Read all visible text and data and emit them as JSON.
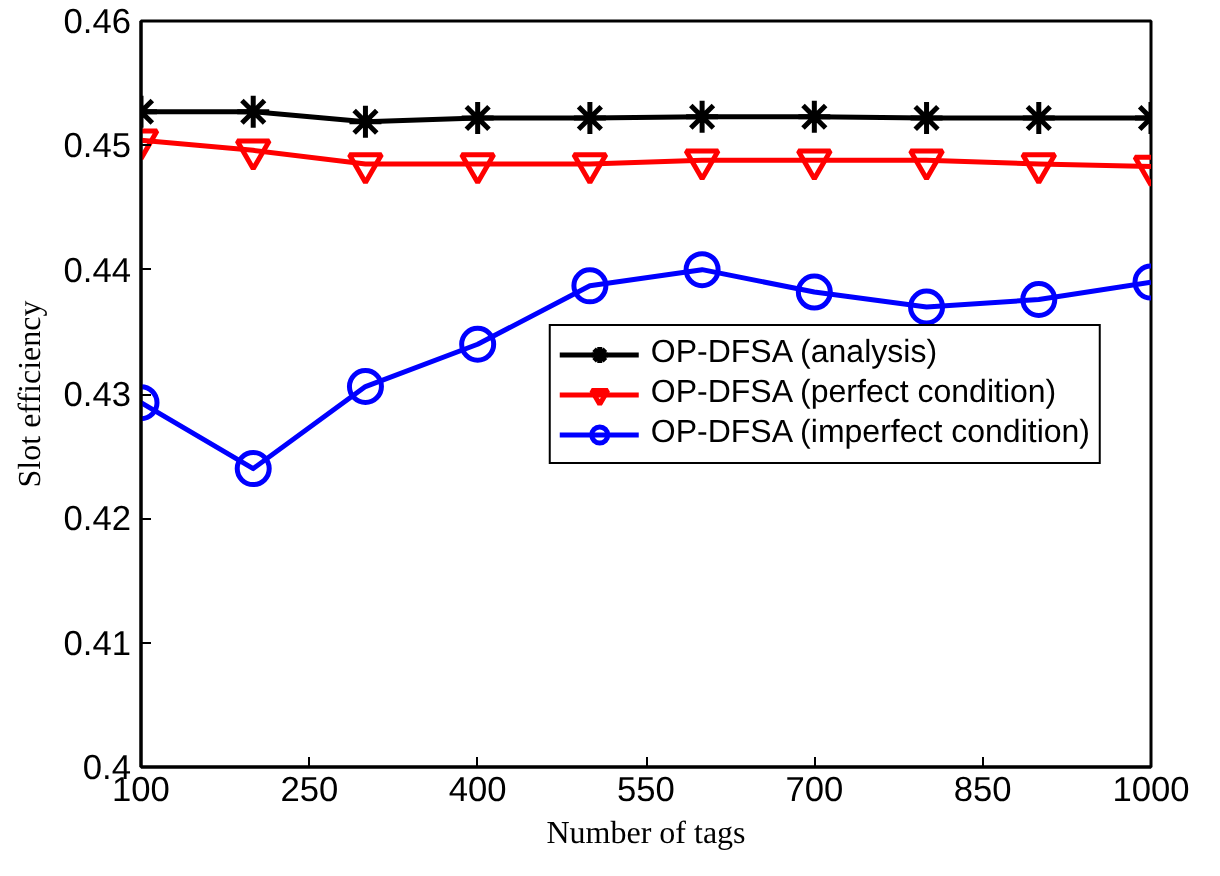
{
  "chart_data": {
    "type": "line",
    "xlabel": "Number of tags",
    "ylabel": "Slot efficiency",
    "x": [
      100,
      200,
      300,
      400,
      500,
      600,
      700,
      800,
      900,
      1000
    ],
    "xlim": [
      100,
      1000
    ],
    "xticks": [
      100,
      250,
      400,
      550,
      700,
      850,
      1000
    ],
    "ylim": [
      0.4,
      0.46
    ],
    "yticks": [
      0.4,
      0.41,
      0.42,
      0.43,
      0.44,
      0.45,
      0.46
    ],
    "grid": false,
    "legend": "center right",
    "line_style": "solid",
    "series": [
      {
        "name": "OP-DFSA (analysis)",
        "color": "#000000",
        "marker": "cross",
        "values": [
          0.4527,
          0.4527,
          0.4519,
          0.4522,
          0.4522,
          0.4523,
          0.4523,
          0.4522,
          0.4522,
          0.4522
        ]
      },
      {
        "name": "OP-DFSA (perfect condition)",
        "color": "#ff0000",
        "marker": "triangle",
        "values": [
          0.4504,
          0.4496,
          0.4485,
          0.4485,
          0.4485,
          0.4488,
          0.4488,
          0.4488,
          0.4485,
          0.4483
        ]
      },
      {
        "name": "OP-DFSA (imperfect condition)",
        "color": "#0000ff",
        "marker": "circle",
        "values": [
          0.4293,
          0.424,
          0.4306,
          0.434,
          0.4387,
          0.44,
          0.4382,
          0.437,
          0.4376,
          0.439
        ]
      }
    ]
  }
}
